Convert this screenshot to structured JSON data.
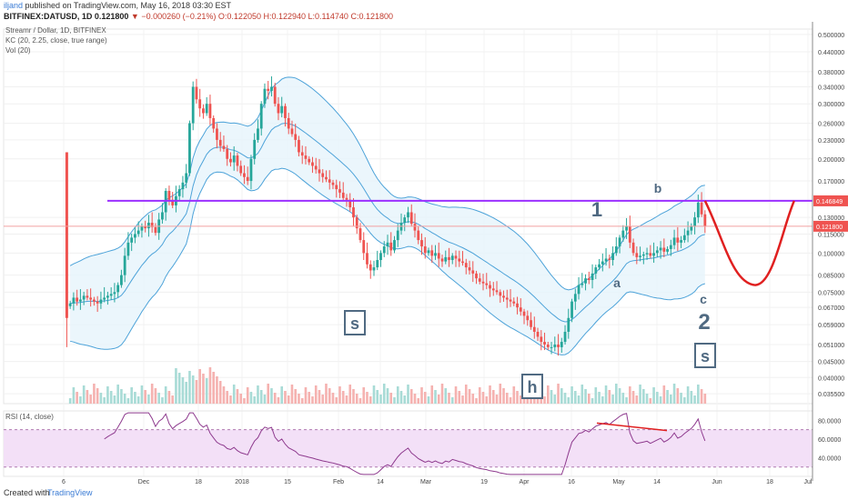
{
  "header": {
    "author": "iljand",
    "published": "published on TradingView.com, May 16, 2018 03:30 EST",
    "symbol": "BITFINEX:DATUSD, 1D",
    "last": "0.121800",
    "change": "▼ −0.000260 (−0.21%)",
    "o": "O:0.122050",
    "h": "H:0.122940",
    "l": "L:0.114740",
    "c": "C:0.121800"
  },
  "legend": {
    "main": "Streamr / Dollar, 1D, BITFINEX",
    "kc": "KC (20, 2.25, close, true range)",
    "vol": "Vol (20)",
    "rsi": "RSI (14, close)"
  },
  "footer": {
    "created_with": "Created with",
    "brand": "TradingView"
  },
  "colors": {
    "up": "#26a69a",
    "down": "#ef5350",
    "kc": "#4da3d9",
    "kc_fill": "#e6f4fb",
    "hline": "#9b30ff",
    "projection": "#e02020",
    "rsi_line": "#8e3a8e",
    "rsi_fill": "#f3e0f7",
    "price_tag": "#ef5350",
    "annotation": "#506a82"
  },
  "chart_data": [
    {
      "type": "candlestick",
      "title": "Streamr / Dollar, 1D, BITFINEX",
      "y_axis_labels": [
        "0.500000",
        "0.440000",
        "0.380000",
        "0.340000",
        "0.300000",
        "0.260000",
        "0.230000",
        "0.200000",
        "0.170000",
        "0.130000",
        "0.115000",
        "0.100000",
        "0.085000",
        "0.075000",
        "0.067000",
        "0.059000",
        "0.051000",
        "0.045000",
        "0.040000",
        "0.035500"
      ],
      "x_axis_labels": [
        "6",
        "Dec",
        "18",
        "2018",
        "15",
        "Feb",
        "14",
        "Mar",
        "19",
        "Apr",
        "16",
        "May",
        "14",
        "Jun",
        "18",
        "Jul"
      ],
      "price_tags": {
        "horizontal_level": "0.146849",
        "last": "0.121800"
      },
      "horizontal_level": 0.146849,
      "log_scale": true,
      "ylim": [
        0.033,
        0.52
      ],
      "days_shown": 237,
      "first_candle_day": 19,
      "close_series": [
        0.069,
        0.072,
        0.07,
        0.071,
        0.073,
        0.072,
        0.071,
        0.07,
        0.069,
        0.071,
        0.072,
        0.073,
        0.074,
        0.075,
        0.079,
        0.085,
        0.098,
        0.108,
        0.112,
        0.115,
        0.118,
        0.122,
        0.12,
        0.125,
        0.121,
        0.116,
        0.128,
        0.135,
        0.158,
        0.148,
        0.142,
        0.152,
        0.16,
        0.168,
        0.18,
        0.26,
        0.34,
        0.31,
        0.29,
        0.28,
        0.3,
        0.27,
        0.25,
        0.23,
        0.22,
        0.215,
        0.2,
        0.195,
        0.205,
        0.19,
        0.18,
        0.175,
        0.17,
        0.2,
        0.23,
        0.25,
        0.3,
        0.335,
        0.33,
        0.34,
        0.3,
        0.28,
        0.295,
        0.27,
        0.25,
        0.24,
        0.23,
        0.21,
        0.205,
        0.2,
        0.195,
        0.19,
        0.185,
        0.18,
        0.175,
        0.172,
        0.168,
        0.165,
        0.16,
        0.156,
        0.15,
        0.148,
        0.14,
        0.13,
        0.12,
        0.11,
        0.1,
        0.092,
        0.088,
        0.09,
        0.095,
        0.1,
        0.105,
        0.108,
        0.102,
        0.11,
        0.118,
        0.125,
        0.13,
        0.135,
        0.124,
        0.118,
        0.11,
        0.105,
        0.1,
        0.102,
        0.098,
        0.1,
        0.096,
        0.094,
        0.097,
        0.095,
        0.098,
        0.096,
        0.094,
        0.093,
        0.09,
        0.088,
        0.086,
        0.083,
        0.081,
        0.08,
        0.079,
        0.077,
        0.076,
        0.075,
        0.073,
        0.072,
        0.071,
        0.07,
        0.069,
        0.067,
        0.065,
        0.063,
        0.061,
        0.058,
        0.056,
        0.054,
        0.052,
        0.051,
        0.05,
        0.05,
        0.051,
        0.05,
        0.052,
        0.056,
        0.062,
        0.07,
        0.074,
        0.079,
        0.08,
        0.083,
        0.082,
        0.086,
        0.09,
        0.092,
        0.094,
        0.096,
        0.095,
        0.1,
        0.105,
        0.112,
        0.118,
        0.122,
        0.108,
        0.1,
        0.097,
        0.098,
        0.099,
        0.1,
        0.098,
        0.1,
        0.102,
        0.104,
        0.101,
        0.103,
        0.106,
        0.112,
        0.108,
        0.11,
        0.114,
        0.118,
        0.122,
        0.13,
        0.145,
        0.133,
        0.122
      ],
      "annotations": {
        "wave_1": "1",
        "wave_b": "b",
        "wave_a": "a",
        "wave_c": "c",
        "wave_2": "2",
        "box_s1": "s",
        "box_h": "h",
        "box_s2": "s"
      }
    },
    {
      "type": "line",
      "title": "RSI (14, close)",
      "y_axis_labels": [
        "80.0000",
        "60.0000",
        "40.0000"
      ],
      "ylim": [
        20,
        90
      ],
      "overbought": 70,
      "oversold": 30
    }
  ]
}
